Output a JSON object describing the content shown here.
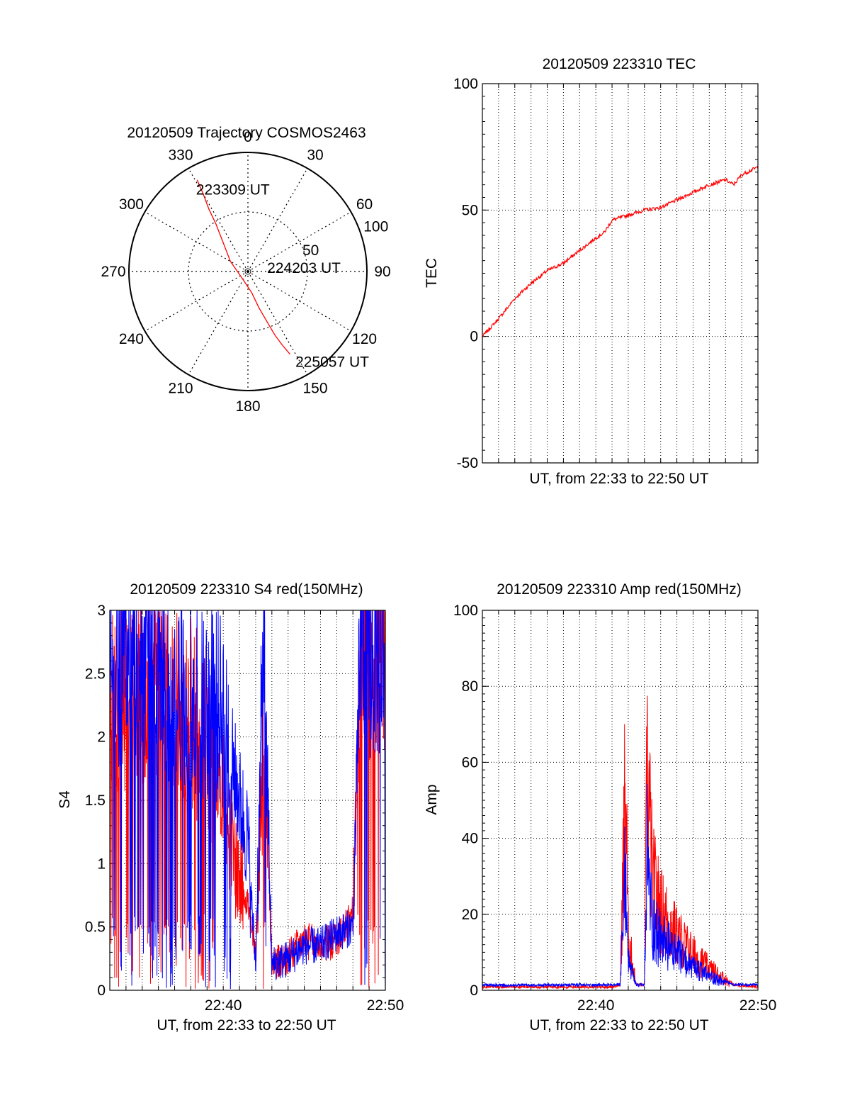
{
  "colors": {
    "red": "#ff0000",
    "blue": "#0000ff",
    "axis": "#000000",
    "grid": "#000000"
  },
  "chart_data": [
    {
      "id": "trajectory",
      "type": "scatter",
      "subtype": "polar",
      "title": "20120509 Trajectory COSMOS2463",
      "angle_labels": [
        "0",
        "30",
        "60",
        "90",
        "120",
        "150",
        "180",
        "210",
        "240",
        "270",
        "300",
        "330"
      ],
      "radius_labels": [
        "50",
        "100"
      ],
      "rlim": [
        0,
        100
      ],
      "grid": true,
      "series": [
        {
          "color": "#ff0000",
          "points": [
            {
              "az": 331,
              "r": 88
            },
            {
              "az": 330,
              "r": 75
            },
            {
              "az": 328,
              "r": 62
            },
            {
              "az": 326,
              "r": 48
            },
            {
              "az": 320,
              "r": 33
            },
            {
              "az": 300,
              "r": 17
            },
            {
              "az": 210,
              "r": 8
            },
            {
              "az": 170,
              "r": 18
            },
            {
              "az": 163,
              "r": 32
            },
            {
              "az": 159,
              "r": 46
            },
            {
              "az": 157,
              "r": 58
            },
            {
              "az": 155,
              "r": 68
            },
            {
              "az": 153,
              "r": 78
            }
          ]
        }
      ],
      "annotations": [
        {
          "text": "223309 UT",
          "az": 330,
          "r": 80
        },
        {
          "text": "224203 UT",
          "az": 80,
          "r": 20
        },
        {
          "text": "225057 UT",
          "az": 150,
          "r": 87
        }
      ]
    },
    {
      "id": "tec",
      "type": "line",
      "title": "20120509 223310 TEC",
      "xlabel": "UT, from 22:33 to 22:50 UT",
      "ylabel": "TEC",
      "xlim": [
        "22:33",
        "22:50"
      ],
      "ylim": [
        -50,
        100
      ],
      "yticks": [
        "-50",
        "0",
        "50",
        "100"
      ],
      "grid": true,
      "series": [
        {
          "color": "#ff0000",
          "x": [
            "22:33",
            "22:34",
            "22:35",
            "22:36",
            "22:37",
            "22:38",
            "22:39",
            "22:40",
            "22:40:30",
            "22:41",
            "22:42",
            "22:43",
            "22:44",
            "22:45",
            "22:46",
            "22:47",
            "22:48",
            "22:48:30",
            "22:49",
            "22:50"
          ],
          "values": [
            0,
            7,
            15,
            21,
            26,
            29,
            34,
            39,
            41,
            46,
            48,
            50,
            51,
            54,
            57,
            60,
            62,
            60,
            64,
            67
          ]
        }
      ]
    },
    {
      "id": "s4",
      "type": "line",
      "title": "20120509 223310 S4 red(150MHz)",
      "xlabel": "UT, from 22:33 to 22:50 UT",
      "ylabel": "S4",
      "xlim": [
        "22:33",
        "22:50"
      ],
      "xticks": [
        "22:40",
        "22:50"
      ],
      "ylim": [
        0,
        3
      ],
      "yticks": [
        "0",
        "0.5",
        "1",
        "1.5",
        "2",
        "2.5",
        "3"
      ],
      "grid": true,
      "series": [
        {
          "color": "#ff0000",
          "x": [
            "22:33",
            "22:35",
            "22:37",
            "22:39",
            "22:40",
            "22:40:30",
            "22:41",
            "22:41:30",
            "22:42",
            "22:42:30",
            "22:43",
            "22:44",
            "22:45",
            "22:46",
            "22:47",
            "22:48",
            "22:48:30",
            "22:49",
            "22:50"
          ],
          "values": [
            2.3,
            2.4,
            2.3,
            2.0,
            1.6,
            1.1,
            0.9,
            0.7,
            0.25,
            2.2,
            0.2,
            0.25,
            0.4,
            0.35,
            0.4,
            0.6,
            2.8,
            2.5,
            2.6
          ]
        },
        {
          "color": "#0000ff",
          "x": [
            "22:33",
            "22:35",
            "22:37",
            "22:39",
            "22:40",
            "22:41",
            "22:41:30",
            "22:42",
            "22:42:30",
            "22:43",
            "22:44",
            "22:45",
            "22:46",
            "22:47",
            "22:48",
            "22:48:30",
            "22:49",
            "22:50"
          ],
          "values": [
            2.5,
            2.6,
            2.4,
            2.3,
            2.2,
            1.5,
            1.2,
            0.2,
            2.8,
            0.2,
            0.25,
            0.35,
            0.35,
            0.45,
            0.5,
            2.8,
            2.6,
            2.6
          ]
        }
      ]
    },
    {
      "id": "amp",
      "type": "line",
      "title": "20120509 223310 Amp red(150MHz)",
      "xlabel": "UT, from 22:33 to 22:50 UT",
      "ylabel": "Amp",
      "xlim": [
        "22:33",
        "22:50"
      ],
      "xticks": [
        "22:40",
        "22:50"
      ],
      "ylim": [
        0,
        100
      ],
      "yticks": [
        "0",
        "20",
        "40",
        "60",
        "80",
        "100"
      ],
      "grid": true,
      "series": [
        {
          "color": "#ff0000",
          "x": [
            "22:33",
            "22:41",
            "22:41:30",
            "22:41:50",
            "22:42",
            "22:42:30",
            "22:43",
            "22:43:10",
            "22:43:30",
            "22:44",
            "22:45",
            "22:46",
            "22:47",
            "22:48",
            "22:48:30",
            "22:50"
          ],
          "values": [
            0.5,
            0.5,
            1,
            60,
            15,
            1,
            1,
            62,
            30,
            22,
            15,
            10,
            6,
            3,
            1,
            0.5
          ]
        },
        {
          "color": "#0000ff",
          "x": [
            "22:33",
            "22:41",
            "22:41:30",
            "22:41:50",
            "22:42",
            "22:42:30",
            "22:43",
            "22:43:10",
            "22:43:30",
            "22:44",
            "22:45",
            "22:46",
            "22:47",
            "22:48",
            "22:48:30",
            "22:50"
          ],
          "values": [
            1,
            1,
            1,
            34,
            8,
            1,
            1,
            38,
            18,
            14,
            10,
            6,
            4,
            2,
            1,
            1
          ]
        }
      ]
    }
  ]
}
